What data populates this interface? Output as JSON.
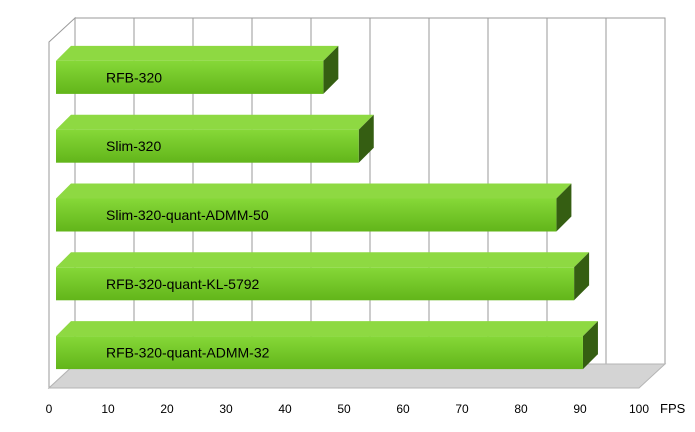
{
  "chart_data": {
    "type": "bar",
    "orientation": "horizontal",
    "style": "3d",
    "categories": [
      "RFB-320",
      "Slim-320",
      "Slim-320-quant-ADMM-50",
      "RFB-320-quant-KL-5792",
      "RFB-320-quant-ADMM-32"
    ],
    "values": [
      46.5,
      52.5,
      86,
      89,
      90.5
    ],
    "xlim": [
      0,
      100
    ],
    "xticks": [
      "0",
      "10",
      "20",
      "30",
      "40",
      "50",
      "60",
      "70",
      "80",
      "90",
      "100"
    ],
    "xlabel": "FPS",
    "grid": true,
    "legend": "none",
    "colors": {
      "bar_front": "#6fc41f",
      "bar_front_light": "#86d838",
      "bar_top": "#8ed942",
      "bar_side": "#355e12",
      "wall": "#ffffff",
      "grid": "#9a9a9a",
      "floor": "#d4d4d4"
    }
  }
}
